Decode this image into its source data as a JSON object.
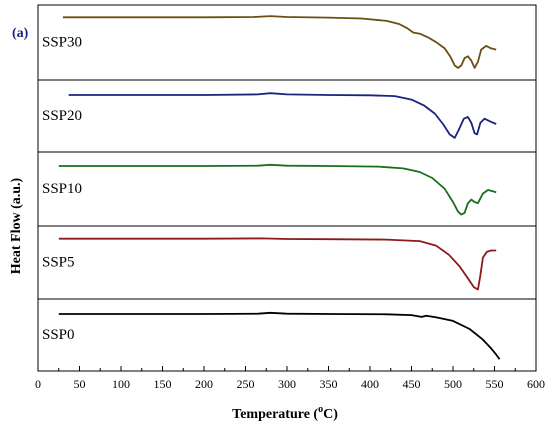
{
  "chart_data": {
    "type": "line",
    "panel_tag": "a",
    "xlabel": "Temperature (",
    "xlabel_sup": "o",
    "xlabel_suffix": "C)",
    "ylabel": "Heat Flow (a.u.)",
    "xlim": [
      0,
      600
    ],
    "xticks": [
      0,
      50,
      100,
      150,
      200,
      250,
      300,
      350,
      400,
      450,
      500,
      550,
      600
    ],
    "grid": false,
    "legend": "none",
    "panels": [
      {
        "name": "SSP30",
        "color": "#6b4e12",
        "ylim": [
          0,
          1
        ],
        "points": [
          [
            30,
            0.93
          ],
          [
            100,
            0.93
          ],
          [
            200,
            0.93
          ],
          [
            260,
            0.935
          ],
          [
            280,
            0.95
          ],
          [
            300,
            0.935
          ],
          [
            350,
            0.925
          ],
          [
            390,
            0.91
          ],
          [
            420,
            0.87
          ],
          [
            435,
            0.82
          ],
          [
            445,
            0.75
          ],
          [
            452,
            0.68
          ],
          [
            460,
            0.66
          ],
          [
            470,
            0.6
          ],
          [
            480,
            0.52
          ],
          [
            490,
            0.42
          ],
          [
            497,
            0.28
          ],
          [
            502,
            0.14
          ],
          [
            506,
            0.1
          ],
          [
            510,
            0.14
          ],
          [
            514,
            0.26
          ],
          [
            518,
            0.29
          ],
          [
            522,
            0.22
          ],
          [
            526,
            0.1
          ],
          [
            530,
            0.2
          ],
          [
            534,
            0.4
          ],
          [
            540,
            0.46
          ],
          [
            546,
            0.42
          ],
          [
            552,
            0.4
          ]
        ]
      },
      {
        "name": "SSP20",
        "color": "#1a237e",
        "ylim": [
          0,
          1
        ],
        "points": [
          [
            37,
            0.88
          ],
          [
            100,
            0.88
          ],
          [
            200,
            0.88
          ],
          [
            265,
            0.89
          ],
          [
            280,
            0.91
          ],
          [
            300,
            0.89
          ],
          [
            350,
            0.88
          ],
          [
            400,
            0.875
          ],
          [
            430,
            0.86
          ],
          [
            450,
            0.8
          ],
          [
            465,
            0.7
          ],
          [
            478,
            0.56
          ],
          [
            488,
            0.38
          ],
          [
            496,
            0.2
          ],
          [
            502,
            0.14
          ],
          [
            507,
            0.28
          ],
          [
            513,
            0.47
          ],
          [
            518,
            0.5
          ],
          [
            522,
            0.4
          ],
          [
            526,
            0.22
          ],
          [
            529,
            0.2
          ],
          [
            533,
            0.4
          ],
          [
            538,
            0.47
          ],
          [
            545,
            0.42
          ],
          [
            552,
            0.38
          ]
        ]
      },
      {
        "name": "SSP10",
        "color": "#1b6e1b",
        "ylim": [
          0,
          1
        ],
        "points": [
          [
            25,
            0.9
          ],
          [
            100,
            0.9
          ],
          [
            200,
            0.9
          ],
          [
            265,
            0.905
          ],
          [
            280,
            0.92
          ],
          [
            300,
            0.905
          ],
          [
            350,
            0.9
          ],
          [
            410,
            0.89
          ],
          [
            440,
            0.86
          ],
          [
            460,
            0.8
          ],
          [
            475,
            0.7
          ],
          [
            490,
            0.52
          ],
          [
            500,
            0.3
          ],
          [
            506,
            0.14
          ],
          [
            510,
            0.09
          ],
          [
            514,
            0.12
          ],
          [
            518,
            0.28
          ],
          [
            522,
            0.34
          ],
          [
            526,
            0.3
          ],
          [
            530,
            0.28
          ],
          [
            536,
            0.44
          ],
          [
            542,
            0.5
          ],
          [
            548,
            0.48
          ],
          [
            552,
            0.46
          ]
        ]
      },
      {
        "name": "SSP5",
        "color": "#8b1a1a",
        "ylim": [
          0,
          1
        ],
        "points": [
          [
            25,
            0.92
          ],
          [
            100,
            0.92
          ],
          [
            200,
            0.92
          ],
          [
            270,
            0.925
          ],
          [
            300,
            0.915
          ],
          [
            350,
            0.912
          ],
          [
            420,
            0.905
          ],
          [
            460,
            0.88
          ],
          [
            480,
            0.8
          ],
          [
            495,
            0.65
          ],
          [
            508,
            0.45
          ],
          [
            518,
            0.25
          ],
          [
            525,
            0.1
          ],
          [
            530,
            0.06
          ],
          [
            533,
            0.3
          ],
          [
            536,
            0.6
          ],
          [
            541,
            0.7
          ],
          [
            546,
            0.72
          ],
          [
            552,
            0.72
          ]
        ]
      },
      {
        "name": "SSP0",
        "color": "#000000",
        "ylim": [
          0,
          1
        ],
        "points": [
          [
            25,
            0.88
          ],
          [
            100,
            0.88
          ],
          [
            200,
            0.88
          ],
          [
            265,
            0.885
          ],
          [
            280,
            0.9
          ],
          [
            300,
            0.885
          ],
          [
            350,
            0.88
          ],
          [
            420,
            0.875
          ],
          [
            450,
            0.86
          ],
          [
            462,
            0.83
          ],
          [
            468,
            0.85
          ],
          [
            480,
            0.82
          ],
          [
            500,
            0.76
          ],
          [
            520,
            0.62
          ],
          [
            535,
            0.45
          ],
          [
            545,
            0.3
          ],
          [
            552,
            0.18
          ],
          [
            556,
            0.1
          ]
        ]
      }
    ]
  }
}
